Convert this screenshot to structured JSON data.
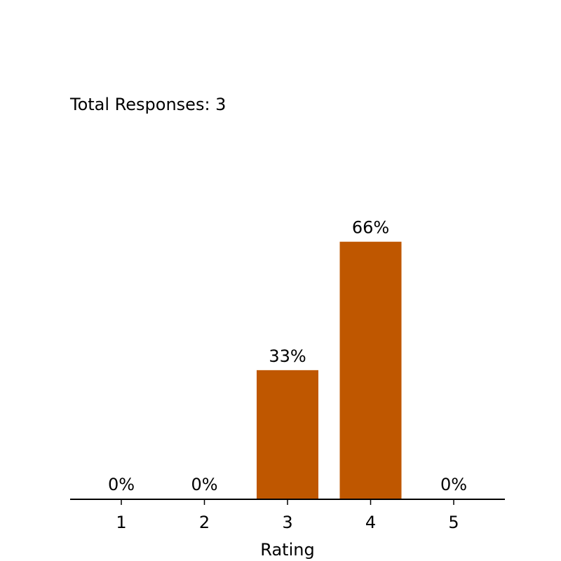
{
  "chart_data": {
    "type": "bar",
    "categories": [
      "1",
      "2",
      "3",
      "4",
      "5"
    ],
    "values": [
      0,
      0,
      33,
      66,
      0
    ],
    "data_labels": [
      "0%",
      "0%",
      "33%",
      "66%",
      "0%"
    ],
    "annotation": "Total Responses: 3",
    "xlabel": "Rating",
    "ylabel": "",
    "ylim": [
      0,
      100
    ],
    "bar_color": "#bf5700",
    "grid": false,
    "legend": "none"
  }
}
